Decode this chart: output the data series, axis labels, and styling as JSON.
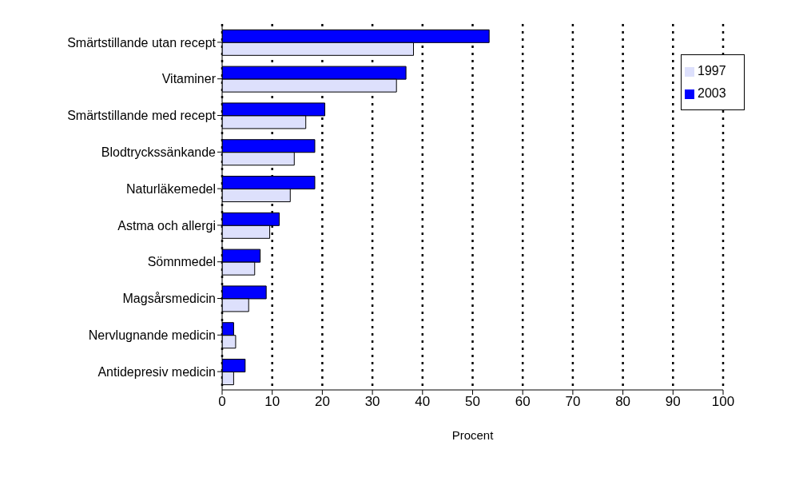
{
  "chart_data": {
    "type": "bar",
    "orientation": "horizontal",
    "xlabel": "Procent",
    "categories": [
      "Smärtstillande utan recept",
      "Vitaminer",
      "Smärtstillande med recept",
      "Blodtryckssänkande",
      "Naturläkemedel",
      "Astma och allergi",
      "Sömnmedel",
      "Magsårsmedicin",
      "Nervlugnande medicin",
      "Antidepresiv medicin"
    ],
    "series": [
      {
        "name": "2003",
        "color": "#0000ff",
        "values": [
          53.3,
          36.7,
          20.5,
          18.5,
          18.5,
          11.4,
          7.6,
          8.8,
          2.3,
          4.6
        ]
      },
      {
        "name": "1997",
        "color": "#dde0fc",
        "values": [
          38.2,
          34.8,
          16.7,
          14.4,
          13.6,
          9.5,
          6.5,
          5.3,
          2.7,
          2.3
        ]
      }
    ],
    "xlim": [
      0,
      100
    ],
    "xticks": [
      0,
      10,
      20,
      30,
      40,
      50,
      60,
      70,
      80,
      90,
      100
    ],
    "grid": "x",
    "legend": "top right"
  }
}
